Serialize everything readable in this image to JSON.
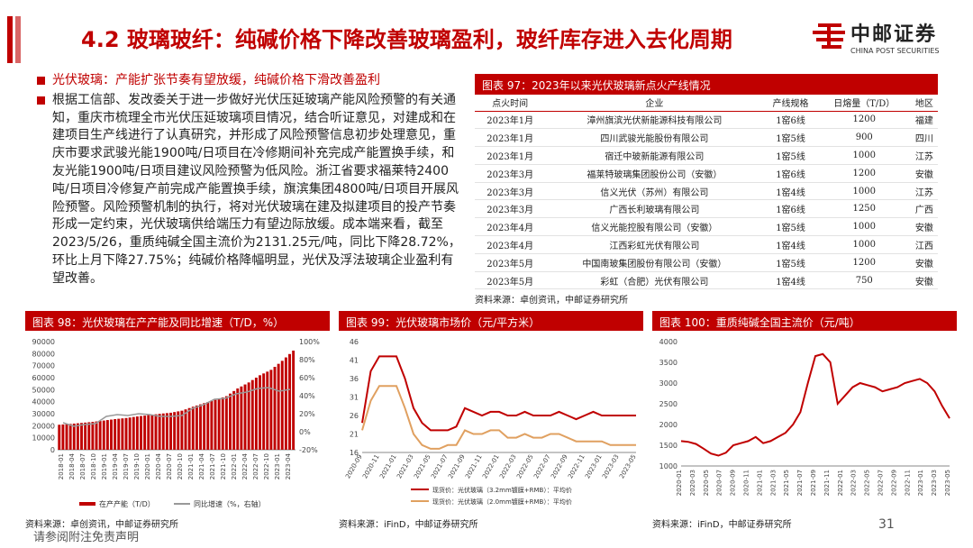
{
  "header": {
    "title": "4.2 玻璃玻纤：纯碱价格下降改善玻璃盈利，玻纤库存进入去化周期",
    "logo_cn": "中邮证券",
    "logo_en": "CHINA POST SECURITIES"
  },
  "left": {
    "bullet": "光伏玻璃：产能扩张节奏有望放缓，纯碱价格下滑改善盈利",
    "paragraph": "根据工信部、发改委关于进一步做好光伏压延玻璃产能风险预警的有关通知，重庆市梳理全市光伏压延玻璃项目情况，结合听证意见，对建成和在建项目生产线进行了认真研究，并形成了风险预警信息初步处理意见，重庆市要求武骏光能1900吨/日项目在冷修期间补充完成产能置换手续，和友光能1900吨/日项目建议风险预警为低风险。浙江省要求福莱特2400吨/日项目冷修复产前完成产能置换手续，旗滨集团4800吨/日项目开展风险预警。风险预警机制的执行，将对光伏玻璃在建及拟建项目的投产节奏形成一定约束，光伏玻璃供给端压力有望边际放缓。成本端来看，截至2023/5/26，重质纯碱全国主流价为2131.25元/吨，同比下降28.72%，环比上月下降27.75%；纯碱价格降幅明显，光伏及浮法玻璃企业盈利有望改善。"
  },
  "table": {
    "title": "图表 97：2023年以来光伏玻璃新点火产线情况",
    "headers": [
      "点火时间",
      "企业",
      "产线规格",
      "日熔量（T/D）",
      "地区"
    ],
    "rows": [
      [
        "2023年1月",
        "漳州旗滨光伏新能源科技有限公司",
        "1窑6线",
        "1200",
        "福建"
      ],
      [
        "2023年1月",
        "四川武骏光能股份有限公司",
        "1窑5线",
        "900",
        "四川"
      ],
      [
        "2023年1月",
        "宿迁中玻新能源有限公司",
        "1窑5线",
        "1000",
        "江苏"
      ],
      [
        "2023年3月",
        "福莱特玻璃集团股份公司（安徽）",
        "1窑6线",
        "1200",
        "安徽"
      ],
      [
        "2023年3月",
        "信义光伏（苏州）有限公司",
        "1窑4线",
        "1000",
        "江苏"
      ],
      [
        "2023年3月",
        "广西长利玻璃有限公司",
        "1窑6线",
        "1250",
        "广西"
      ],
      [
        "2023年4月",
        "信义光能控股有限公司（安徽）",
        "1窑5线",
        "1000",
        "安徽"
      ],
      [
        "2023年4月",
        "江西彩虹光伏有限公司",
        "1窑4线",
        "1000",
        "江西"
      ],
      [
        "2023年5月",
        "中国南玻集团股份有限公司（安徽）",
        "1窑5线",
        "1200",
        "安徽"
      ],
      [
        "2023年5月",
        "彩虹（合肥）光伏有限公司",
        "1窑4线",
        "750",
        "安徽"
      ]
    ],
    "source": "资料来源：卓创资讯，中邮证券研究所"
  },
  "charts": {
    "c98_title": "图表 98：光伏玻璃在产产能及同比增速（T/D，%）",
    "c98_source": "资料来源：卓创资讯，中邮证券研究所",
    "c99_title": "图表 99：光伏玻璃市场价（元/平方米）",
    "c99_source": "资料来源：iFinD，中邮证券研究所",
    "c100_title": "图表 100：重质纯碱全国主流价（元/吨）",
    "c100_source": "资料来源：iFinD，中邮证券研究所"
  },
  "chart_data": [
    {
      "type": "bar",
      "title": "图表 98：光伏玻璃在产产能及同比增速（T/D，%）",
      "categories": [
        "2018-01",
        "2018-04",
        "2018-07",
        "2018-10",
        "2019-01",
        "2019-04",
        "2019-07",
        "2019-10",
        "2020-01",
        "2020-04",
        "2020-07",
        "2020-10",
        "2021-01",
        "2021-04",
        "2021-07",
        "2021-10",
        "2022-01",
        "2022-04",
        "2022-07",
        "2022-10",
        "2023-01",
        "2023-04"
      ],
      "series": [
        {
          "name": "在产产能（T/D）",
          "type": "bar",
          "axis": "left",
          "color": "#c00000",
          "values": [
            20800,
            21500,
            22300,
            23200,
            24300,
            25500,
            26400,
            27700,
            28800,
            29900,
            30800,
            32500,
            35800,
            38800,
            41500,
            44600,
            51000,
            56000,
            62000,
            66500,
            74000,
            82500
          ]
        },
        {
          "name": "同比增速（%，右轴）",
          "type": "line",
          "axis": "right",
          "color": "#999999",
          "values": [
            10,
            6,
            8,
            9,
            17,
            19,
            18,
            20,
            19,
            17,
            17,
            18,
            26,
            30,
            36,
            37,
            42,
            44,
            48,
            49,
            45,
            47
          ]
        }
      ],
      "left_axis_ticks": [
        "0",
        "10000",
        "20000",
        "30000",
        "40000",
        "50000",
        "60000",
        "70000",
        "80000",
        "90000"
      ],
      "right_axis_ticks": [
        "-20%",
        "0%",
        "20%",
        "40%",
        "60%",
        "80%",
        "100%"
      ],
      "ylim": [
        0,
        90000
      ],
      "y2lim": [
        -20,
        100
      ],
      "legend": "bottom"
    },
    {
      "type": "line",
      "title": "图表 99：光伏玻璃市场价（元/平方米）",
      "x_ticks": [
        "2020-09",
        "2020-11",
        "2021-01",
        "2021-03",
        "2021-05",
        "2021-07",
        "2021-09",
        "2021-11",
        "2022-01",
        "2022-03",
        "2022-05",
        "2022-07",
        "2022-09",
        "2022-11",
        "2023-01",
        "2023-03",
        "2023-05"
      ],
      "series": [
        {
          "name": "现货价：光伏玻璃（3.2mm镀膜+RMB）：平均价",
          "color": "#c00000",
          "values": [
            24,
            38,
            42,
            42,
            42,
            36,
            28,
            24,
            22,
            22,
            22,
            23,
            28,
            27,
            26,
            27,
            27,
            26,
            26,
            27,
            26,
            26,
            26,
            27,
            26,
            25,
            26,
            27,
            26,
            26,
            26,
            26,
            26
          ]
        },
        {
          "name": "现货价：光伏玻璃（2.0mm镀膜+RMB）：平均价",
          "color": "#e0a060",
          "values": [
            22,
            30,
            34,
            34,
            34,
            28,
            21,
            18,
            17,
            17,
            18,
            18,
            22,
            21,
            21,
            22,
            22,
            20,
            20,
            21,
            20,
            20,
            21,
            21,
            20,
            19,
            19,
            19,
            19,
            18,
            18,
            18,
            18
          ]
        }
      ],
      "y_ticks": [
        "16",
        "21",
        "26",
        "31",
        "36",
        "41",
        "46"
      ],
      "ylim": [
        16,
        46
      ],
      "legend": "bottom"
    },
    {
      "type": "line",
      "title": "图表 100：重质纯碱全国主流价（元/吨）",
      "x_ticks": [
        "2020-01",
        "2020-03",
        "2020-05",
        "2020-07",
        "2020-09",
        "2020-11",
        "2021-01",
        "2021-03",
        "2021-05",
        "2021-07",
        "2021-09",
        "2021-11",
        "2022-01",
        "2022-03",
        "2022-05",
        "2022-07",
        "2022-09",
        "2022-11",
        "2023-01",
        "2023-03",
        "2023-05"
      ],
      "series": [
        {
          "name": "重质纯碱全国主流价",
          "color": "#c00000",
          "values": [
            1600,
            1580,
            1530,
            1420,
            1300,
            1250,
            1320,
            1500,
            1550,
            1600,
            1700,
            1550,
            1600,
            1700,
            1800,
            2000,
            2300,
            3000,
            3650,
            3700,
            3500,
            2500,
            2700,
            2900,
            3000,
            2950,
            2900,
            2800,
            2850,
            2900,
            3000,
            3050,
            3100,
            3000,
            2800,
            2450,
            2150
          ]
        }
      ],
      "y_ticks": [
        "1000",
        "1500",
        "2000",
        "2500",
        "3000",
        "3500",
        "4000"
      ],
      "ylim": [
        1000,
        4000
      ]
    }
  ],
  "footer": {
    "disclaimer": "请参阅附注免责声明",
    "page": "31"
  }
}
